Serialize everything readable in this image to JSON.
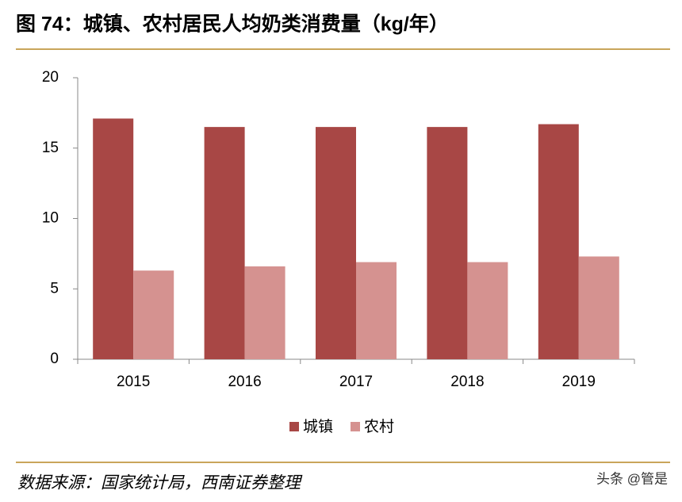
{
  "chart_data": {
    "type": "bar",
    "title": "图 74：城镇、农村居民人均奶类消费量（kg/年）",
    "categories": [
      "2015",
      "2016",
      "2017",
      "2018",
      "2019"
    ],
    "series": [
      {
        "name": "城镇",
        "color": "#a84745",
        "values": [
          17.1,
          16.5,
          16.5,
          16.5,
          16.7
        ]
      },
      {
        "name": "农村",
        "color": "#d59290",
        "values": [
          6.3,
          6.6,
          6.9,
          6.9,
          7.3
        ]
      }
    ],
    "ylim": [
      0,
      20
    ],
    "yticks": [
      0,
      5,
      10,
      15,
      20
    ],
    "grid": false,
    "legend": "bottom",
    "source": "数据来源：国家统计局，西南证券整理",
    "watermark": "头条 @管是"
  }
}
